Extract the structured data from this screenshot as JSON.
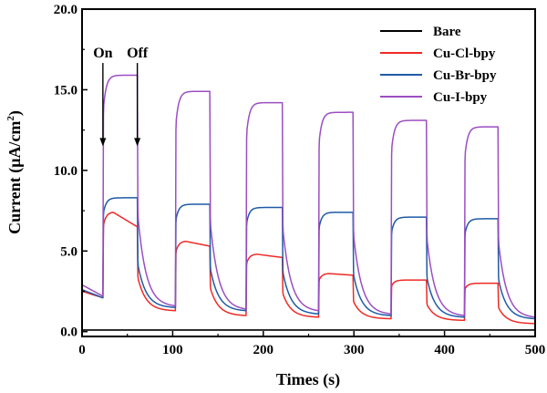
{
  "chart_data": {
    "type": "line",
    "title": "",
    "xlabel": "Times (s)",
    "ylabel": "Current (μA/cm²)",
    "ylabel_main": "Current (",
    "ylabel_unit": "μA/cm",
    "ylabel_sup": "2",
    "ylabel_close": ")",
    "xlim": [
      0,
      500
    ],
    "ylim": [
      -0.3,
      20.0
    ],
    "xticks": [
      0,
      100,
      200,
      300,
      400,
      500
    ],
    "xtick_labels": [
      "0",
      "100",
      "200",
      "300",
      "400",
      "500"
    ],
    "yticks": [
      0.0,
      5.0,
      10.0,
      15.0,
      20.0
    ],
    "ytick_labels": [
      "0.0",
      "5.0",
      "10.0",
      "15.0",
      "20.0"
    ],
    "legend_position": "top-right",
    "on_period_starts": [
      23,
      103,
      181,
      261,
      341,
      422
    ],
    "on_period_ends": [
      61,
      141,
      221,
      299,
      380,
      459
    ],
    "series": [
      {
        "name": "Bare",
        "color": "#000000",
        "start": 0.1,
        "base": [
          0.1,
          0.1,
          0.1,
          0.1,
          0.1,
          0.1,
          0.1
        ],
        "peak": [
          0.1,
          0.1,
          0.1,
          0.1,
          0.1,
          0.1
        ],
        "end": [
          0.1,
          0.1,
          0.1,
          0.1,
          0.1,
          0.1
        ]
      },
      {
        "name": "Cu-Cl-bpy",
        "color": "#ee2a24",
        "start": 2.5,
        "base": [
          2.1,
          1.3,
          1.0,
          0.9,
          0.8,
          0.7,
          0.5
        ],
        "peak": [
          7.4,
          5.6,
          4.8,
          3.6,
          3.2,
          3.0
        ],
        "end": [
          6.5,
          5.3,
          4.6,
          3.5,
          3.2,
          3.0
        ]
      },
      {
        "name": "Cu-Br-bpy",
        "color": "#1f5aa6",
        "start": 2.6,
        "base": [
          2.1,
          1.5,
          1.3,
          1.1,
          1.0,
          0.9,
          0.8
        ],
        "peak": [
          8.3,
          7.9,
          7.7,
          7.4,
          7.1,
          7.0
        ],
        "end": [
          8.3,
          7.9,
          7.7,
          7.4,
          7.1,
          7.0
        ]
      },
      {
        "name": "Cu-I-bpy",
        "color": "#9b4ec0",
        "start": 2.9,
        "base": [
          2.2,
          1.6,
          1.4,
          1.3,
          1.1,
          1.0,
          0.9
        ],
        "peak": [
          15.9,
          14.9,
          14.2,
          13.6,
          13.1,
          12.7
        ],
        "end": [
          15.9,
          14.9,
          14.2,
          13.6,
          13.1,
          12.7
        ]
      }
    ],
    "annotations": [
      {
        "text": "On",
        "x": 23,
        "arrow_to_y": 11.5,
        "label_y": 17.0
      },
      {
        "text": "Off",
        "x": 61,
        "arrow_to_y": 11.5,
        "label_y": 17.0
      }
    ]
  }
}
